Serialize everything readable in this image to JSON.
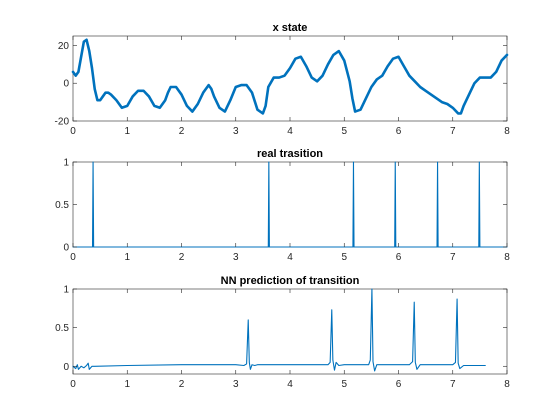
{
  "chart_data": [
    {
      "type": "line",
      "title": "x state",
      "xlim": [
        0,
        8
      ],
      "ylim": [
        -20,
        25
      ],
      "xticks": [
        0,
        1,
        2,
        3,
        4,
        5,
        6,
        7,
        8
      ],
      "yticks": [
        -20,
        0,
        20
      ],
      "grid": false,
      "color": "#0072BD",
      "line_width": "thick",
      "series": [
        {
          "x": [
            0.0,
            0.05,
            0.1,
            0.15,
            0.2,
            0.25,
            0.3,
            0.35,
            0.4,
            0.45,
            0.5,
            0.55,
            0.6,
            0.65,
            0.7,
            0.8,
            0.9,
            1.0,
            1.1,
            1.2,
            1.3,
            1.4,
            1.5,
            1.6,
            1.7,
            1.75,
            1.8,
            1.9,
            2.0,
            2.1,
            2.2,
            2.3,
            2.4,
            2.5,
            2.55,
            2.6,
            2.7,
            2.8,
            2.9,
            3.0,
            3.1,
            3.2,
            3.3,
            3.4,
            3.5,
            3.55,
            3.6,
            3.7,
            3.8,
            3.9,
            4.0,
            4.1,
            4.2,
            4.3,
            4.4,
            4.5,
            4.6,
            4.7,
            4.8,
            4.9,
            5.0,
            5.1,
            5.15,
            5.2,
            5.3,
            5.4,
            5.5,
            5.6,
            5.7,
            5.8,
            5.9,
            6.0,
            6.1,
            6.2,
            6.3,
            6.4,
            6.5,
            6.6,
            6.7,
            6.8,
            6.9,
            7.0,
            7.1,
            7.15,
            7.2,
            7.3,
            7.4,
            7.5,
            7.6,
            7.7,
            7.8,
            7.9,
            8.0
          ],
          "y": [
            6,
            4,
            6,
            14,
            22,
            23,
            17,
            8,
            -3,
            -9,
            -9,
            -7,
            -5,
            -5,
            -6,
            -9,
            -13,
            -12,
            -7,
            -4,
            -4,
            -7,
            -12,
            -13,
            -9,
            -5,
            -2,
            -2,
            -6,
            -12,
            -15,
            -11,
            -5,
            -1,
            -3,
            -7,
            -13,
            -15,
            -9,
            -2,
            -1,
            -1,
            -5,
            -14,
            -16,
            -12,
            -2,
            3,
            3,
            4,
            8,
            13,
            14,
            9,
            3,
            1,
            4,
            10,
            15,
            17,
            12,
            1,
            -8,
            -15,
            -14,
            -8,
            -2,
            2,
            4,
            9,
            13,
            14,
            9,
            4,
            1,
            -2,
            -4,
            -6,
            -8,
            -10,
            -11,
            -13,
            -16,
            -16,
            -12,
            -6,
            0,
            3,
            3,
            3,
            6,
            12,
            15
          ]
        }
      ]
    },
    {
      "type": "line",
      "title": "real trasition",
      "xlim": [
        0,
        8
      ],
      "ylim": [
        0,
        1
      ],
      "xticks": [
        0,
        1,
        2,
        3,
        4,
        5,
        6,
        7,
        8
      ],
      "yticks": [
        0,
        0.5,
        1
      ],
      "grid": false,
      "color": "#0072BD",
      "line_width": "thin",
      "series": [
        {
          "x": [
            0.0,
            0.36,
            0.37,
            0.38,
            3.6,
            3.61,
            3.62,
            5.16,
            5.17,
            5.18,
            5.93,
            5.94,
            5.95,
            6.71,
            6.72,
            6.73,
            7.48,
            7.49,
            7.5,
            8.0
          ],
          "y": [
            0,
            0,
            1,
            0,
            0,
            1,
            0,
            0,
            1,
            0,
            0,
            1,
            0,
            0,
            1,
            0,
            0,
            1,
            0,
            0
          ]
        }
      ]
    },
    {
      "type": "line",
      "title": "NN prediction of transition",
      "xlim": [
        0,
        8
      ],
      "ylim": [
        -0.1,
        1
      ],
      "xticks": [
        0,
        1,
        2,
        3,
        4,
        5,
        6,
        7,
        8
      ],
      "yticks": [
        0,
        0.5,
        1
      ],
      "grid": false,
      "color": "#0072BD",
      "line_width": "thin",
      "series": [
        {
          "x": [
            0.0,
            0.05,
            0.08,
            0.1,
            0.15,
            0.2,
            0.25,
            0.28,
            0.3,
            0.35,
            0.4,
            1.0,
            2.0,
            3.0,
            3.15,
            3.2,
            3.23,
            3.25,
            3.27,
            3.3,
            3.35,
            3.4,
            4.0,
            4.7,
            4.74,
            4.77,
            4.79,
            4.82,
            4.85,
            4.9,
            5.0,
            5.45,
            5.48,
            5.51,
            5.53,
            5.56,
            5.6,
            5.7,
            6.2,
            6.26,
            6.29,
            6.31,
            6.34,
            6.4,
            6.5,
            7.0,
            7.05,
            7.08,
            7.1,
            7.13,
            7.2,
            7.6
          ],
          "y": [
            0.0,
            -0.03,
            0.02,
            -0.04,
            0.0,
            -0.02,
            0.01,
            0.04,
            -0.04,
            0.0,
            0.0,
            0.01,
            0.02,
            0.02,
            0.01,
            0.03,
            0.6,
            0.05,
            -0.04,
            0.02,
            0.01,
            0.02,
            0.02,
            0.02,
            0.05,
            0.73,
            0.08,
            -0.05,
            0.05,
            0.01,
            0.02,
            0.02,
            0.08,
            1.0,
            0.06,
            -0.06,
            0.02,
            0.02,
            0.02,
            0.06,
            0.83,
            0.05,
            -0.04,
            0.02,
            0.02,
            0.02,
            0.05,
            0.87,
            0.04,
            -0.03,
            0.01,
            0.01
          ]
        }
      ]
    }
  ]
}
